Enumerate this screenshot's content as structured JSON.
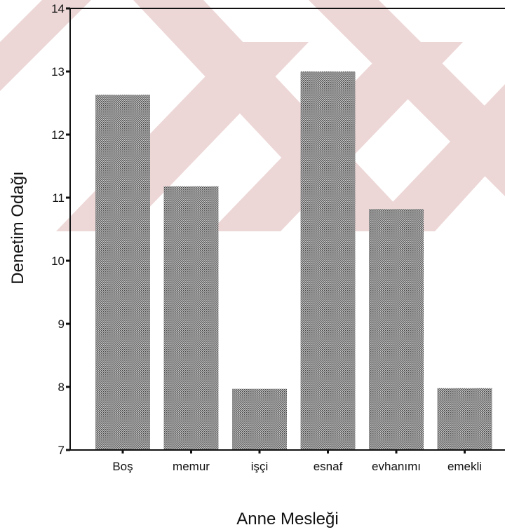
{
  "chart_data": {
    "type": "bar",
    "xlabel": "Anne Mesleği",
    "ylabel": "Denetim Odağı",
    "categories": [
      "Boş",
      "memur",
      "işçi",
      "esnaf",
      "evhanımı",
      "emekli"
    ],
    "values": [
      12.63,
      11.18,
      7.97,
      13.0,
      10.82,
      7.98
    ],
    "ylim": [
      7,
      14
    ],
    "yticks": [
      "7",
      "8",
      "9",
      "10",
      "11",
      "12",
      "13",
      "14"
    ],
    "grid": false,
    "legend": "none",
    "bar_fill": "#b0b0b0",
    "watermark_color": "#d8a6a6"
  }
}
